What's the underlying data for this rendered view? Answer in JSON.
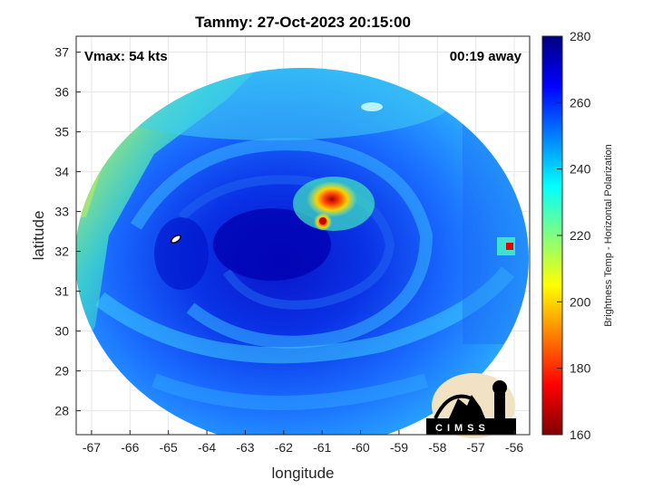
{
  "chart_data": {
    "type": "heatmap",
    "title": "Tammy: 27-Oct-2023 20:15:00",
    "xlabel": "longitude",
    "ylabel": "latitude",
    "xlim": [
      -67.4,
      -55.6
    ],
    "ylim": [
      27.4,
      37.4
    ],
    "x_ticks": [
      "-67",
      "-66",
      "-65",
      "-64",
      "-63",
      "-62",
      "-61",
      "-60",
      "-59",
      "-58",
      "-57",
      "-56"
    ],
    "y_ticks": [
      "28",
      "29",
      "30",
      "31",
      "32",
      "33",
      "34",
      "35",
      "36",
      "37"
    ],
    "annotations": {
      "vmax": "Vmax: 54 kts",
      "time_away": "00:19 away"
    },
    "colorbar": {
      "label": "Brightness Temp - Horizontal Polarization",
      "min": 160,
      "max": 280,
      "ticks": [
        "160",
        "180",
        "200",
        "220",
        "240",
        "260",
        "280"
      ],
      "colormap": "jet"
    },
    "storm_center": {
      "lon": -60.9,
      "lat": 32.8,
      "min_temp": 165
    },
    "logo": "CIMSS",
    "grid": true
  },
  "colors": {
    "background": "#ffffff",
    "grid": "#e5e5e5",
    "axis": "#262626",
    "cold_core": "#0000b4",
    "warm_edge": "#a6e85a",
    "hot_spot": "#b40000"
  }
}
